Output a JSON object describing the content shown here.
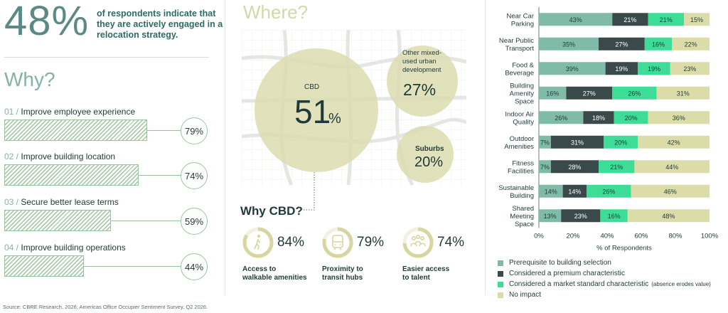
{
  "headline": {
    "pct": "48%",
    "text": "of respondents indicate that they are actively engaged in a relocation strategy."
  },
  "why": {
    "title": "Why?",
    "reasons": [
      {
        "num": "01 /",
        "label": "Improve employee experience",
        "value": 79,
        "pct_label": "79%"
      },
      {
        "num": "02 /",
        "label": "Improve building location",
        "value": 74,
        "pct_label": "74%"
      },
      {
        "num": "03 /",
        "label": "Secure better lease terms",
        "value": 59,
        "pct_label": "59%"
      },
      {
        "num": "04 /",
        "label": "Improve building operations",
        "value": 44,
        "pct_label": "44%"
      }
    ]
  },
  "where": {
    "title": "Where?",
    "cbd": {
      "label": "CBD",
      "value": "51",
      "unit": "%"
    },
    "mixed": {
      "label_lines": [
        "Other mixed-",
        "used urban",
        "development"
      ],
      "value": "27%"
    },
    "suburbs": {
      "label": "Suburbs",
      "value": "20%"
    }
  },
  "why_cbd": {
    "title": "Why CBD?",
    "amenities": [
      {
        "value": 84,
        "pct_label": "84%",
        "label_lines": [
          "Access to",
          "walkable amenities"
        ],
        "icon": "walking-person-icon"
      },
      {
        "value": 79,
        "pct_label": "79%",
        "label_lines": [
          "Proximity to",
          "transit hubs"
        ],
        "icon": "train-icon"
      },
      {
        "value": 74,
        "pct_label": "74%",
        "label_lines": [
          "Easier access",
          "to talent"
        ],
        "icon": "people-group-icon"
      }
    ]
  },
  "chart_data": {
    "type": "bar",
    "orientation": "horizontal",
    "stacked": true,
    "categories": [
      [
        "Near Car",
        "Parking"
      ],
      [
        "Near Public",
        "Transport"
      ],
      [
        "Food &",
        "Beverage"
      ],
      [
        "Building",
        "Amenity",
        "Space"
      ],
      [
        "Indoor Air",
        "Quality"
      ],
      [
        "Outdoor",
        "Amenities"
      ],
      [
        "Fitness",
        "Facilities"
      ],
      [
        "Sustainable",
        "Building"
      ],
      [
        "Shared",
        "Meeting",
        "Space"
      ]
    ],
    "series": [
      {
        "name": "Prerequisite to building selection",
        "color": "#80bba8",
        "values": [
          43,
          35,
          39,
          16,
          26,
          7,
          7,
          14,
          13
        ]
      },
      {
        "name": "Considered a premium characteristic",
        "color": "#3a4a4a",
        "values": [
          21,
          27,
          19,
          27,
          18,
          31,
          28,
          14,
          23
        ]
      },
      {
        "name": "Considered a market standard characteristic",
        "note": "(absence erodes value)",
        "color": "#3ddc97",
        "values": [
          21,
          16,
          19,
          26,
          20,
          20,
          21,
          26,
          16
        ]
      },
      {
        "name": "No impact",
        "color": "#dcdca8",
        "values": [
          15,
          22,
          23,
          31,
          36,
          42,
          44,
          46,
          48
        ]
      }
    ],
    "xlim": [
      0,
      100
    ],
    "xticks": [
      "0%",
      "20%",
      "40%",
      "60%",
      "80%",
      "100%"
    ],
    "xlabel": "% of Respondents"
  },
  "source": "Source: CBRE Research, 2026; Americas Office Occupier Sentiment Survey, Q2 2026."
}
